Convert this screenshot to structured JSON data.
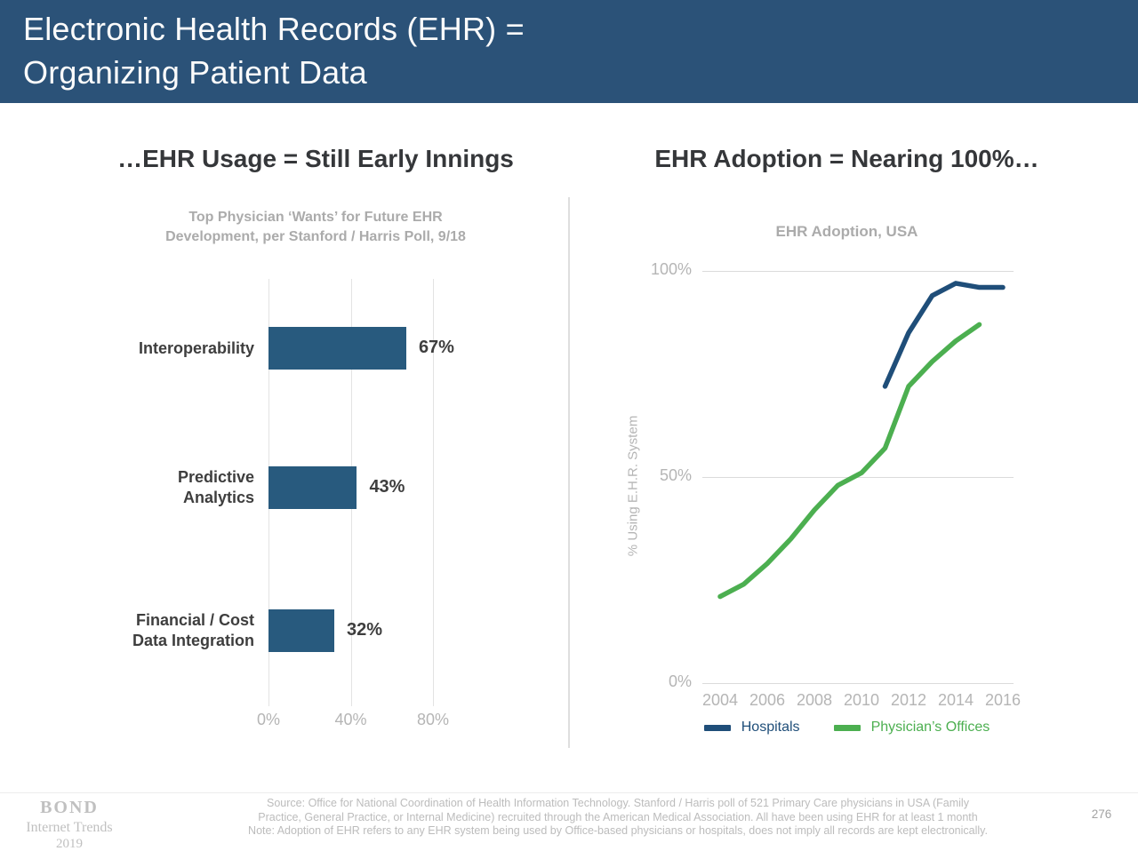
{
  "header": {
    "title_line1": "Electronic Health Records (EHR) =",
    "title_line2": "Organizing Patient Data"
  },
  "left_panel": {
    "heading": "…EHR Usage = Still Early Innings",
    "subtitle_line1": "Top Physician ‘Wants’ for Future EHR",
    "subtitle_line2": "Development, per Stanford / Harris Poll, 9/18"
  },
  "right_panel": {
    "heading": "EHR Adoption = Nearing 100%…"
  },
  "chart_data": [
    {
      "type": "bar",
      "orientation": "horizontal",
      "title": "Top Physician ‘Wants’ for Future EHR Development, per Stanford / Harris Poll, 9/18",
      "categories": [
        "Interoperability",
        "Predictive Analytics",
        "Financial / Cost Data Integration"
      ],
      "category_lines": [
        [
          "Interoperability"
        ],
        [
          "Predictive",
          "Analytics"
        ],
        [
          "Financial / Cost",
          "Data Integration"
        ]
      ],
      "values": [
        67,
        43,
        32
      ],
      "value_labels": [
        "67%",
        "43%",
        "32%"
      ],
      "xticks": [
        0,
        40,
        80
      ],
      "xtick_labels": [
        "0%",
        "40%",
        "80%"
      ],
      "xlim": [
        0,
        100
      ],
      "grid": true,
      "bar_color": "#285A7E"
    },
    {
      "type": "line",
      "title": "EHR Adoption, USA",
      "ylabel": "% Using E.H.R. System",
      "xticks": [
        2004,
        2006,
        2008,
        2010,
        2012,
        2014,
        2016
      ],
      "yticks": [
        0,
        50,
        100
      ],
      "ytick_labels": [
        "0%",
        "50%",
        "100%"
      ],
      "xlim": [
        2003,
        2016.6
      ],
      "ylim": [
        0,
        100
      ],
      "grid": true,
      "legend_position": "bottom",
      "series": [
        {
          "name": "Hospitals",
          "color": "#1F4E79",
          "x": [
            2011,
            2012,
            2013,
            2014,
            2015,
            2016
          ],
          "values": [
            72,
            85,
            94,
            97,
            96,
            96
          ]
        },
        {
          "name": "Physician’s Offices",
          "color": "#4CAF50",
          "x": [
            2004,
            2005,
            2006,
            2007,
            2008,
            2009,
            2010,
            2011,
            2012,
            2013,
            2014,
            2015
          ],
          "values": [
            21,
            24,
            29,
            35,
            42,
            48,
            51,
            57,
            72,
            78,
            83,
            87
          ]
        }
      ]
    }
  ],
  "colors": {
    "header_bg": "#2B5278",
    "bar_blue": "#285A7E",
    "hospitals_blue": "#1F4E79",
    "physicians_green": "#4CAF50",
    "gridline": "#DBDBDB"
  },
  "footer": {
    "logo_line1": "BOND",
    "logo_line2": "Internet Trends",
    "logo_line3": "2019",
    "source_line1": "Source: Office for National Coordination of Health Information Technology. Stanford / Harris poll of 521 Primary Care physicians in USA (Family",
    "source_line2": "Practice, General Practice, or Internal Medicine) recruited through the American Medical Association.  All have been using EHR for at least 1 month",
    "source_line3": "Note: Adoption of EHR refers to any EHR system being used by Office-based physicians or hospitals, does not imply all records are kept electronically.",
    "page_number": "276"
  }
}
